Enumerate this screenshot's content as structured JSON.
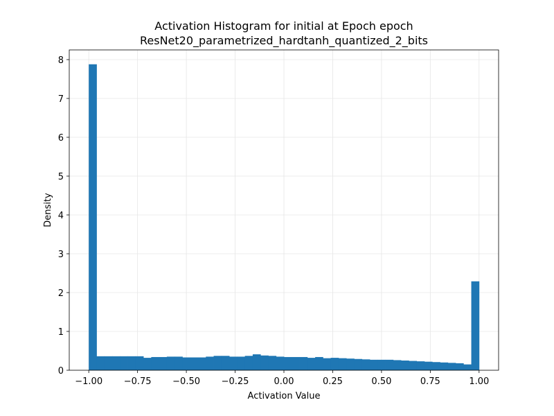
{
  "chart_data": {
    "type": "bar",
    "title_line1": "Activation Histogram for initial at Epoch epoch",
    "title_line2": "ResNet20_parametrized_hardtanh_quantized_2_bits",
    "xlabel": "Activation Value",
    "ylabel": "Density",
    "xlim": [
      -1.1,
      1.1
    ],
    "ylim": [
      0,
      8.25
    ],
    "xticks": [
      -1.0,
      -0.75,
      -0.5,
      -0.25,
      0.0,
      0.25,
      0.5,
      0.75,
      1.0
    ],
    "xtick_labels": [
      "−1.00",
      "−0.75",
      "−0.50",
      "−0.25",
      "0.00",
      "0.25",
      "0.50",
      "0.75",
      "1.00"
    ],
    "yticks": [
      0,
      1,
      2,
      3,
      4,
      5,
      6,
      7,
      8
    ],
    "ytick_labels": [
      "0",
      "1",
      "2",
      "3",
      "4",
      "5",
      "6",
      "7",
      "8"
    ],
    "grid": true,
    "bin_start": -1.0,
    "bin_end": 1.0,
    "bin_count": 50,
    "bar_color": "#1f77b4",
    "values": [
      7.88,
      0.36,
      0.36,
      0.36,
      0.36,
      0.36,
      0.36,
      0.32,
      0.34,
      0.34,
      0.35,
      0.35,
      0.33,
      0.33,
      0.33,
      0.35,
      0.37,
      0.37,
      0.35,
      0.35,
      0.37,
      0.41,
      0.38,
      0.37,
      0.35,
      0.34,
      0.34,
      0.34,
      0.32,
      0.34,
      0.31,
      0.32,
      0.31,
      0.3,
      0.29,
      0.28,
      0.27,
      0.27,
      0.27,
      0.26,
      0.25,
      0.24,
      0.23,
      0.22,
      0.21,
      0.2,
      0.19,
      0.18,
      0.15,
      2.29
    ]
  }
}
